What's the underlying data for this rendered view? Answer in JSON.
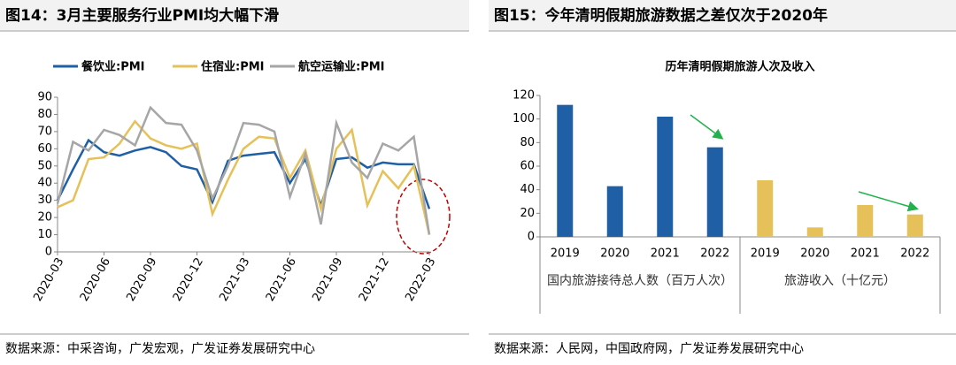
{
  "panels": [
    {
      "heading": "图14：3月主要服务行业PMI均大幅下滑",
      "source": "数据来源：中采咨询，广发宏观，广发证券发展研究中心"
    },
    {
      "heading": "图15：今年清明假期旅游数据之差仅次于2020年",
      "source": "数据来源：人民网，中国政府网，广发证券发展研究中心"
    }
  ],
  "chart_data": [
    {
      "type": "line",
      "categories": [
        "2020-03",
        null,
        null,
        "2020-06",
        null,
        null,
        "2020-09",
        null,
        null,
        "2020-12",
        null,
        null,
        "2021-03",
        null,
        null,
        "2021-06",
        null,
        null,
        "2021-09",
        null,
        null,
        "2021-12",
        null,
        null,
        "2022-03"
      ],
      "series": [
        {
          "name": "餐饮业:PMI",
          "color": "#1f5fa6",
          "values": [
            30,
            48,
            65,
            58,
            56,
            59,
            61,
            58,
            50,
            48,
            29,
            53,
            56,
            57,
            58,
            40,
            54,
            27,
            54,
            55,
            49,
            52,
            51,
            51,
            25
          ]
        },
        {
          "name": "住宿业:PMI",
          "color": "#e6c15a",
          "values": [
            26,
            30,
            54,
            55,
            63,
            76,
            66,
            62,
            60,
            63,
            22,
            42,
            60,
            67,
            66,
            43,
            59,
            25,
            60,
            71,
            27,
            47,
            37,
            50,
            10
          ]
        },
        {
          "name": "航空运输业:PMI",
          "color": "#a6a6a6",
          "values": [
            28,
            64,
            59,
            71,
            68,
            62,
            84,
            75,
            74,
            59,
            31,
            50,
            75,
            74,
            70,
            32,
            57,
            16,
            75,
            52,
            43,
            63,
            59,
            67,
            10
          ]
        }
      ],
      "ylim": [
        0,
        90
      ],
      "yticks": [
        0,
        10,
        20,
        30,
        40,
        50,
        60,
        70,
        80,
        90
      ],
      "legend": "top"
    },
    {
      "type": "bar",
      "title": "历年清明假期旅游人次及收入",
      "categories": [
        "2019",
        "2020",
        "2021",
        "2022"
      ],
      "series": [
        {
          "name": "国内旅游接待总人数（百万人次）",
          "color": "#1f5fa6",
          "values": [
            112,
            43,
            102,
            76
          ]
        },
        {
          "name": "旅游收入（十亿元）",
          "color": "#e6c15a",
          "values": [
            48,
            8,
            27,
            19
          ]
        }
      ],
      "ylim": [
        0,
        120
      ],
      "yticks": [
        0,
        20,
        40,
        60,
        80,
        100,
        120
      ]
    }
  ]
}
